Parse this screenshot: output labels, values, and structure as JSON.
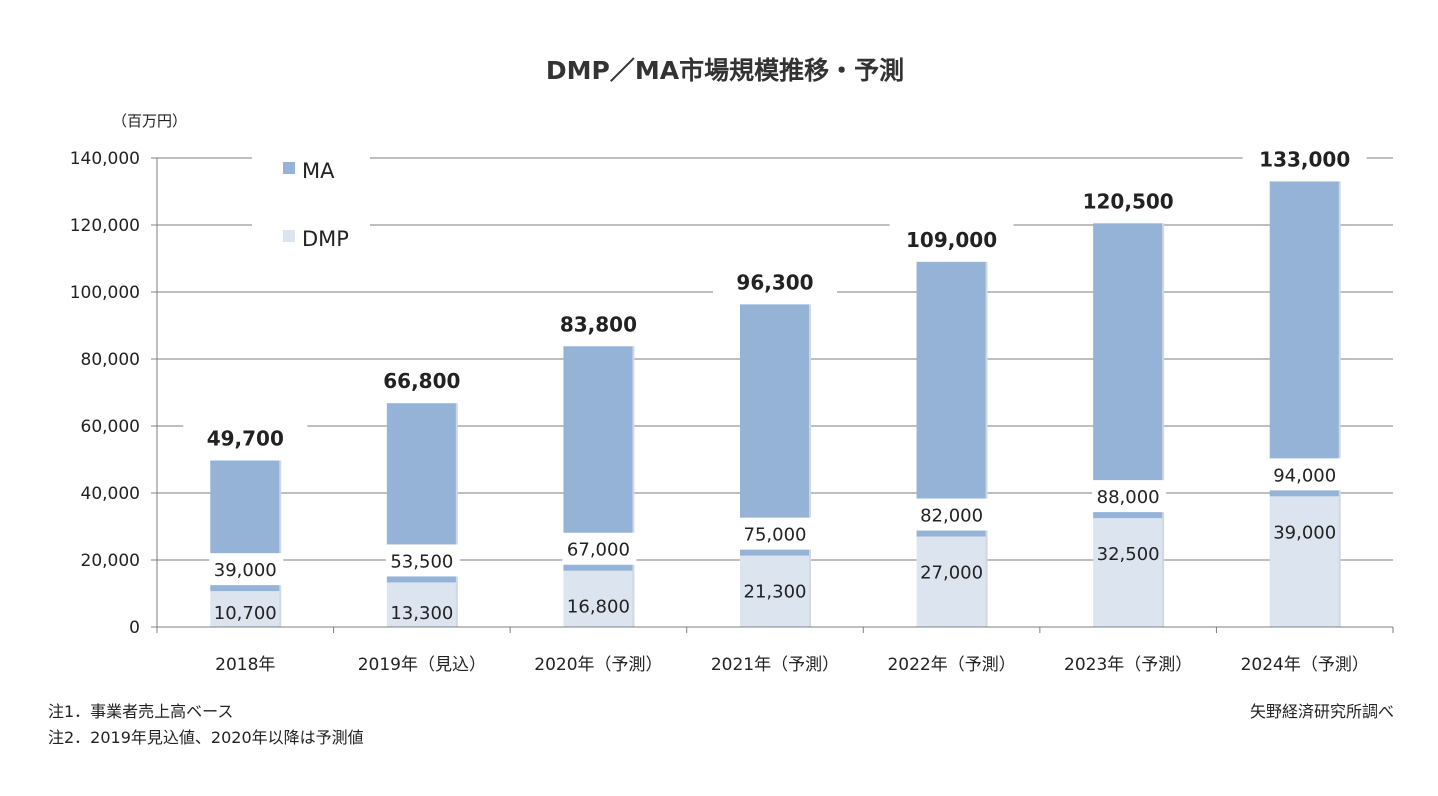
{
  "chart_data": {
    "type": "bar",
    "stacked": true,
    "title": "DMP／MA市場規模推移・予測",
    "unit_label": "（百万円）",
    "categories": [
      "2018年",
      "2019年（見込）",
      "2020年（予測）",
      "2021年（予測）",
      "2022年（予測）",
      "2023年（予測）",
      "2024年（予測）"
    ],
    "series": [
      {
        "name": "DMP",
        "color": "#dce4f0",
        "values": [
          10700,
          13300,
          16800,
          21300,
          27000,
          32500,
          39000
        ],
        "labels": [
          "10,700",
          "13,300",
          "16,800",
          "21,300",
          "27,000",
          "32,500",
          "39,000"
        ]
      },
      {
        "name": "MA",
        "color": "#95b3d7",
        "values": [
          39000,
          53500,
          67000,
          75000,
          82000,
          88000,
          94000
        ],
        "labels": [
          "39,000",
          "53,500",
          "67,000",
          "75,000",
          "82,000",
          "88,000",
          "94,000"
        ]
      }
    ],
    "totals": [
      49700,
      66800,
      83800,
      96300,
      109000,
      120500,
      133000
    ],
    "total_labels": [
      "49,700",
      "66,800",
      "83,800",
      "96,300",
      "109,000",
      "120,500",
      "133,000"
    ],
    "ylim": [
      0,
      140000
    ],
    "yticks": [
      0,
      20000,
      40000,
      60000,
      80000,
      100000,
      120000,
      140000
    ],
    "ytick_labels": [
      "0",
      "20,000",
      "40,000",
      "60,000",
      "80,000",
      "100,000",
      "120,000",
      "140,000"
    ],
    "grid": true,
    "legend_position": "top-left",
    "legend": [
      {
        "name": "MA",
        "color": "#95b3d7"
      },
      {
        "name": "DMP",
        "color": "#dce4f0"
      }
    ]
  },
  "notes": {
    "note1": "注1．事業者売上高ベース",
    "note2": "注2．2019年見込値、2020年以降は予測値",
    "source": "矢野経済研究所調べ"
  }
}
